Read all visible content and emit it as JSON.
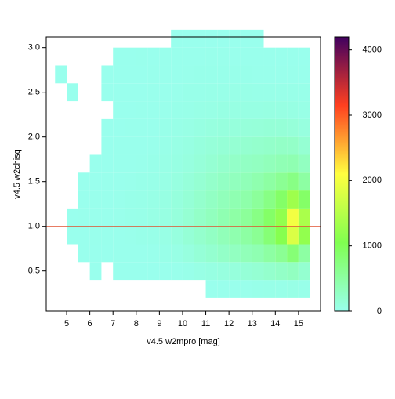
{
  "chart_data": {
    "type": "heatmap",
    "xlabel": "v4.5 w2mpro [mag]",
    "ylabel": "v4.5 w2chisq",
    "xlim": [
      4.12,
      15.95
    ],
    "ylim": [
      0.05,
      3.12
    ],
    "xticks": [
      5,
      6,
      7,
      8,
      9,
      10,
      11,
      12,
      13,
      14,
      15
    ],
    "yticks": [
      {
        "value": 0.5,
        "label": "0.5"
      },
      {
        "value": 1.0,
        "label": "1.0"
      },
      {
        "value": 1.5,
        "label": "1.5"
      },
      {
        "value": 2.0,
        "label": "2.0"
      },
      {
        "value": 2.5,
        "label": "2.5"
      },
      {
        "value": 3.0,
        "label": "3.0"
      }
    ],
    "x_edges": [
      4.5,
      5.0,
      5.5,
      6.0,
      6.5,
      7.0,
      7.5,
      8.0,
      8.5,
      9.0,
      9.5,
      10.0,
      10.5,
      11.0,
      11.5,
      12.0,
      12.5,
      13.0,
      13.5,
      14.0,
      14.5,
      15.0,
      15.5
    ],
    "y_edges": [
      0.2,
      0.4,
      0.6,
      0.8,
      1.0,
      1.2,
      1.4,
      1.6,
      1.8,
      2.0,
      2.2,
      2.4,
      2.6,
      2.8,
      3.0,
      3.2
    ],
    "z": [
      [
        0,
        0,
        0,
        0,
        0,
        0,
        0,
        0,
        0,
        0,
        0,
        0,
        0,
        5,
        10,
        15,
        20,
        30,
        40,
        40,
        50,
        30
      ],
      [
        0,
        0,
        0,
        5,
        0,
        5,
        5,
        5,
        5,
        10,
        20,
        30,
        60,
        80,
        100,
        120,
        150,
        180,
        220,
        260,
        300,
        200
      ],
      [
        0,
        0,
        5,
        5,
        5,
        10,
        10,
        15,
        20,
        40,
        60,
        100,
        150,
        200,
        250,
        300,
        350,
        400,
        500,
        600,
        800,
        500
      ],
      [
        0,
        5,
        5,
        10,
        10,
        15,
        20,
        30,
        40,
        60,
        100,
        160,
        220,
        280,
        350,
        420,
        500,
        600,
        800,
        1100,
        1800,
        1200
      ],
      [
        0,
        5,
        10,
        10,
        15,
        20,
        30,
        40,
        60,
        80,
        120,
        180,
        250,
        320,
        400,
        480,
        560,
        700,
        900,
        1200,
        2000,
        1400
      ],
      [
        0,
        0,
        5,
        10,
        15,
        20,
        30,
        40,
        50,
        70,
        110,
        160,
        220,
        280,
        340,
        400,
        450,
        550,
        700,
        900,
        1300,
        900
      ],
      [
        0,
        0,
        5,
        5,
        10,
        15,
        20,
        30,
        40,
        60,
        90,
        130,
        180,
        230,
        280,
        320,
        360,
        420,
        500,
        600,
        700,
        500
      ],
      [
        0,
        0,
        0,
        5,
        5,
        10,
        15,
        20,
        30,
        50,
        70,
        100,
        140,
        180,
        220,
        250,
        280,
        300,
        340,
        380,
        400,
        300
      ],
      [
        0,
        0,
        0,
        0,
        5,
        10,
        10,
        15,
        20,
        40,
        60,
        80,
        110,
        140,
        160,
        180,
        200,
        220,
        240,
        260,
        250,
        180
      ],
      [
        0,
        0,
        0,
        0,
        5,
        5,
        10,
        10,
        15,
        30,
        45,
        60,
        80,
        100,
        110,
        120,
        130,
        140,
        150,
        150,
        140,
        100
      ],
      [
        0,
        0,
        0,
        0,
        0,
        5,
        5,
        10,
        10,
        20,
        30,
        40,
        50,
        60,
        70,
        70,
        70,
        70,
        80,
        80,
        70,
        50
      ],
      [
        0,
        5,
        0,
        0,
        5,
        5,
        5,
        5,
        10,
        15,
        20,
        30,
        35,
        40,
        40,
        45,
        45,
        40,
        40,
        40,
        40,
        30
      ],
      [
        5,
        0,
        0,
        0,
        5,
        5,
        5,
        5,
        10,
        10,
        15,
        20,
        25,
        25,
        25,
        25,
        25,
        20,
        20,
        20,
        20,
        15
      ],
      [
        0,
        0,
        0,
        0,
        0,
        5,
        5,
        10,
        5,
        10,
        10,
        15,
        15,
        20,
        20,
        15,
        15,
        15,
        10,
        10,
        10,
        5
      ],
      [
        0,
        0,
        0,
        0,
        0,
        0,
        0,
        0,
        0,
        0,
        5,
        5,
        5,
        5,
        5,
        5,
        5,
        5,
        0,
        0,
        0,
        0
      ]
    ],
    "hline": 1.0,
    "hline_color": "#e05030",
    "clim": [
      0,
      4200
    ],
    "cticks": [
      0,
      1000,
      2000,
      3000,
      4000
    ],
    "colormap": [
      "#99ffee",
      "#80ff50",
      "#ffff40",
      "#ff4020",
      "#400060"
    ]
  }
}
